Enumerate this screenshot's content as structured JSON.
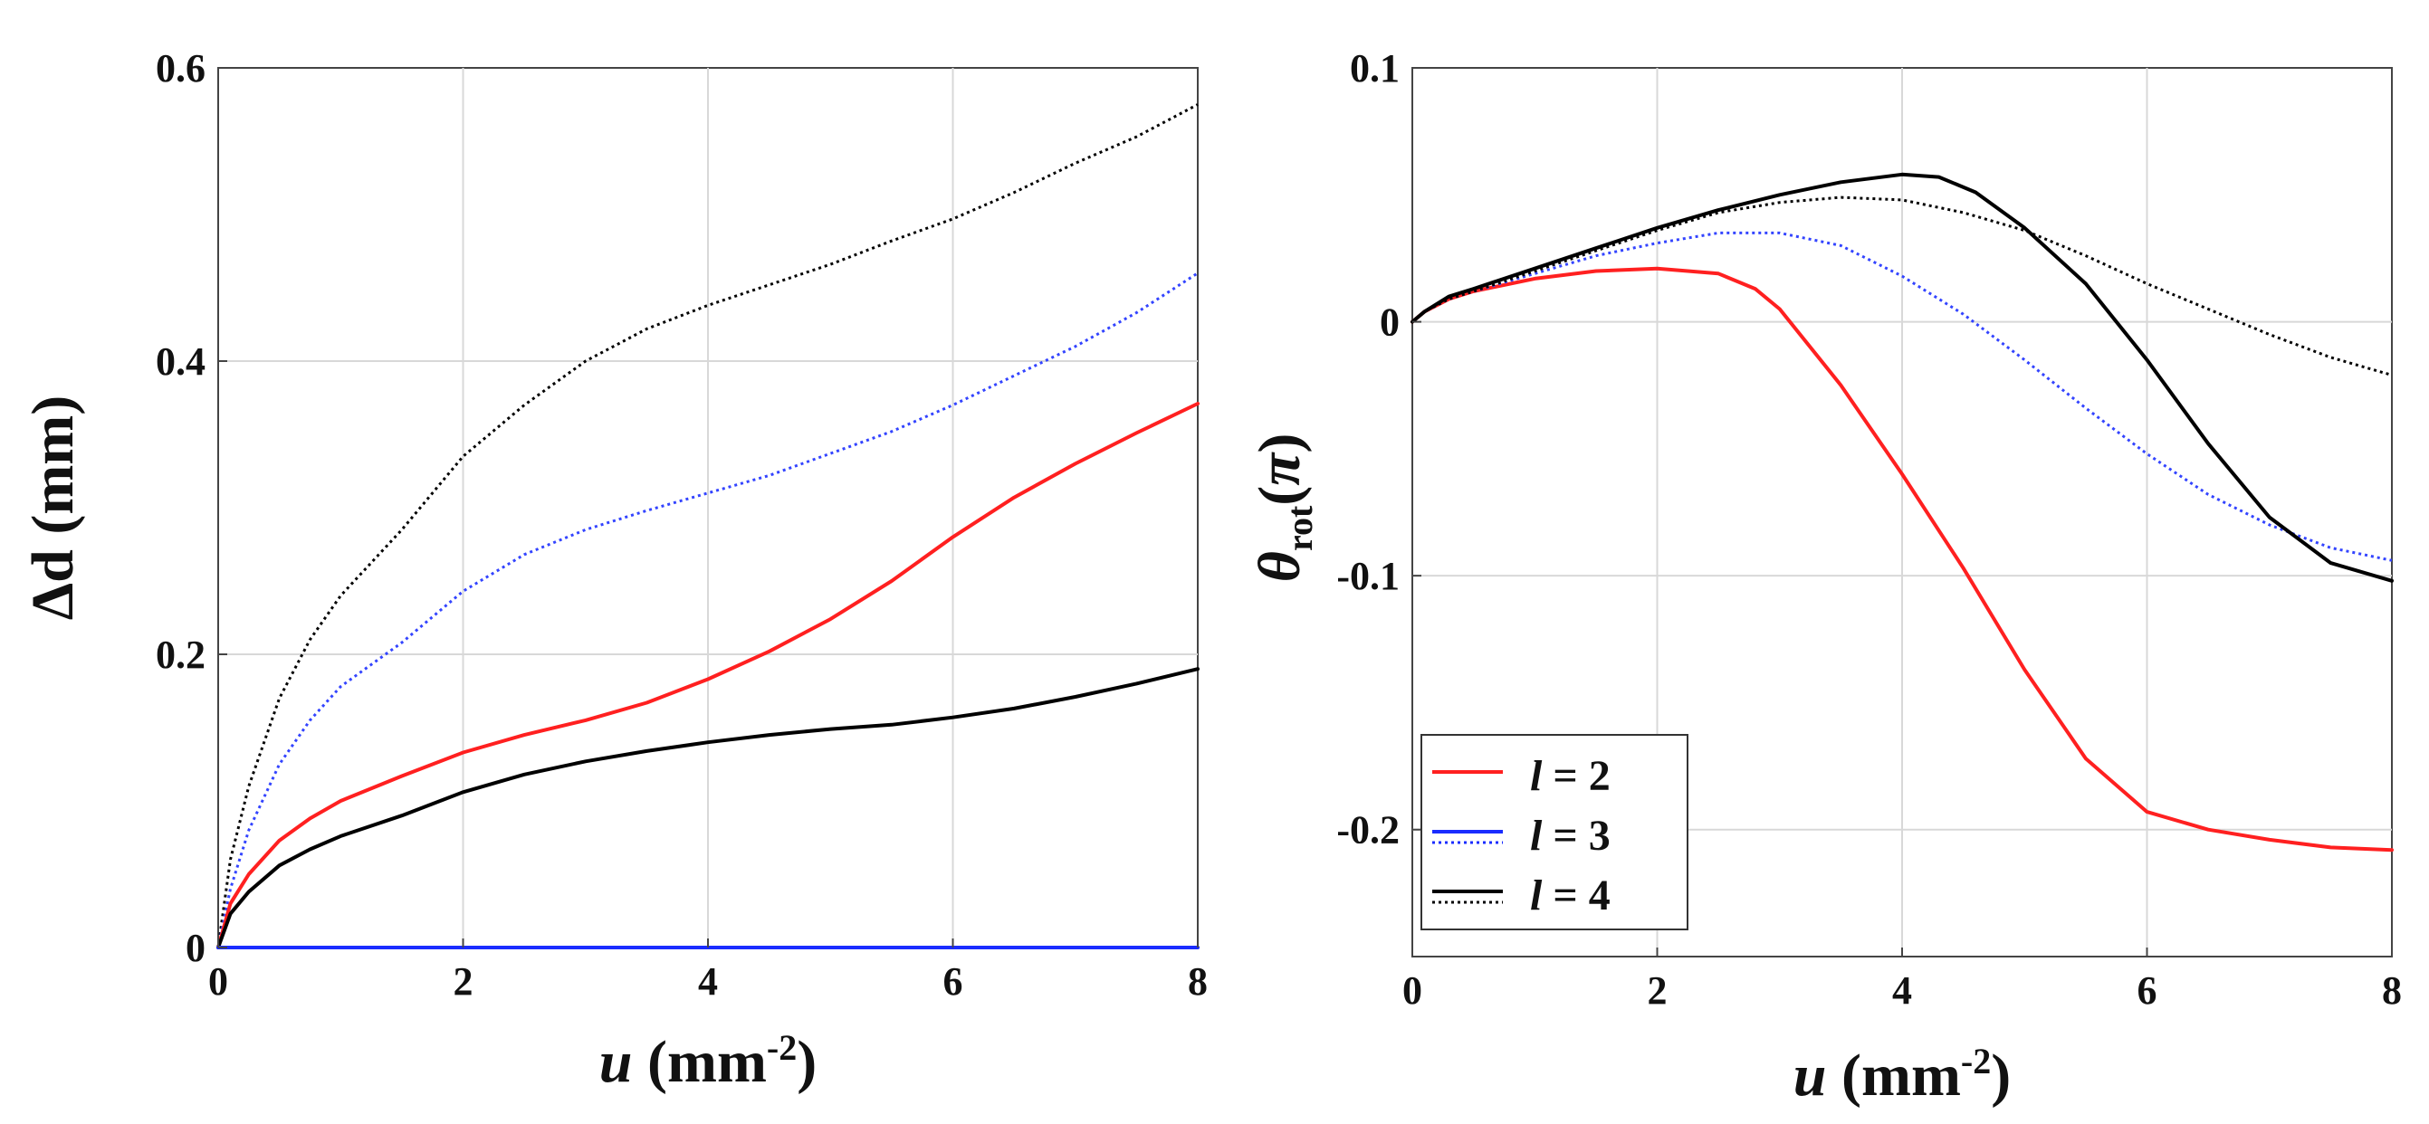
{
  "chart_data": [
    {
      "type": "line",
      "id": "left",
      "xlabel_var": "u",
      "xlabel_unit": " (mm",
      "xlabel_exp": "-2",
      "xlabel_close": ")",
      "ylabel": "Δd (mm)",
      "xlim": [
        0,
        8
      ],
      "ylim": [
        0,
        0.6
      ],
      "xticks": [
        0,
        2,
        4,
        6,
        8
      ],
      "yticks": [
        0,
        0.2,
        0.4,
        0.6
      ],
      "xtick_labels": [
        "0",
        "2",
        "4",
        "6",
        "8"
      ],
      "ytick_labels": [
        "0",
        "0.2",
        "0.4",
        "0.6"
      ],
      "grid": true,
      "series": [
        {
          "name": "l = 4 (dotted)",
          "color": "#000000",
          "dash": "dotted",
          "x": [
            0,
            0.1,
            0.25,
            0.5,
            0.75,
            1,
            1.5,
            2,
            2.5,
            3,
            3.5,
            4,
            4.5,
            5,
            5.5,
            6,
            6.5,
            7,
            7.5,
            8
          ],
          "y": [
            0,
            0.06,
            0.11,
            0.17,
            0.21,
            0.24,
            0.285,
            0.335,
            0.37,
            0.4,
            0.422,
            0.438,
            0.452,
            0.466,
            0.482,
            0.497,
            0.515,
            0.535,
            0.553,
            0.575
          ]
        },
        {
          "name": "l = 3 (dotted)",
          "color": "#3344ff",
          "dash": "dotted",
          "x": [
            0,
            0.1,
            0.25,
            0.5,
            0.75,
            1,
            1.5,
            2,
            2.5,
            3,
            3.5,
            4,
            4.5,
            5,
            5.5,
            6,
            6.5,
            7,
            7.5,
            8
          ],
          "y": [
            0,
            0.04,
            0.08,
            0.125,
            0.155,
            0.178,
            0.208,
            0.243,
            0.268,
            0.285,
            0.298,
            0.31,
            0.322,
            0.337,
            0.352,
            0.37,
            0.39,
            0.41,
            0.433,
            0.46
          ]
        },
        {
          "name": "l = 2",
          "color": "#ff2020",
          "dash": "solid",
          "x": [
            0,
            0.1,
            0.25,
            0.5,
            0.75,
            1,
            1.5,
            2,
            2.5,
            3,
            3.5,
            4,
            4.5,
            5,
            5.5,
            6,
            6.5,
            7,
            7.5,
            8
          ],
          "y": [
            0,
            0.03,
            0.05,
            0.073,
            0.088,
            0.1,
            0.117,
            0.133,
            0.145,
            0.155,
            0.167,
            0.183,
            0.202,
            0.224,
            0.25,
            0.28,
            0.307,
            0.33,
            0.351,
            0.371
          ]
        },
        {
          "name": "l = 4",
          "color": "#000000",
          "dash": "solid",
          "x": [
            0,
            0.1,
            0.25,
            0.5,
            0.75,
            1,
            1.5,
            2,
            2.5,
            3,
            3.5,
            4,
            4.5,
            5,
            5.5,
            6,
            6.5,
            7,
            7.5,
            8
          ],
          "y": [
            0,
            0.023,
            0.038,
            0.056,
            0.067,
            0.076,
            0.09,
            0.106,
            0.118,
            0.127,
            0.134,
            0.14,
            0.145,
            0.149,
            0.152,
            0.157,
            0.163,
            0.171,
            0.18,
            0.19
          ]
        },
        {
          "name": "l = 3",
          "color": "#1a2cff",
          "dash": "solid",
          "x": [
            0,
            8
          ],
          "y": [
            0,
            0
          ]
        }
      ]
    },
    {
      "type": "line",
      "id": "right",
      "xlabel_var": "u",
      "xlabel_unit": " (mm",
      "xlabel_exp": "-2",
      "xlabel_close": ")",
      "ylabel_sym": "θ",
      "ylabel_sub": "rot",
      "ylabel_rest": "(",
      "ylabel_pi": "π",
      "ylabel_end": ")",
      "xlim": [
        0,
        8
      ],
      "ylim": [
        -0.25,
        0.1
      ],
      "xticks": [
        0,
        2,
        4,
        6,
        8
      ],
      "yticks": [
        -0.2,
        -0.1,
        0,
        0.1
      ],
      "xtick_labels": [
        "0",
        "2",
        "4",
        "6",
        "8"
      ],
      "ytick_labels": [
        "-0.2",
        "-0.1",
        "0",
        "0.1"
      ],
      "grid": true,
      "legend_position": "bottom-left",
      "legend": [
        {
          "var": "l",
          "rest": " = 2",
          "color": "#ff2020",
          "solid": true,
          "dotted": false
        },
        {
          "var": "l",
          "rest": " = 3",
          "color": "#1a2cff",
          "solid": true,
          "dotted": true
        },
        {
          "var": "l",
          "rest": " = 4",
          "color": "#000000",
          "solid": true,
          "dotted": true
        }
      ],
      "series": [
        {
          "name": "l = 2",
          "color": "#ff2020",
          "dash": "solid",
          "x": [
            0,
            0.1,
            0.3,
            0.5,
            1,
            1.5,
            2,
            2.5,
            2.8,
            3,
            3.5,
            4,
            4.5,
            5,
            5.5,
            6,
            6.5,
            7,
            7.5,
            8
          ],
          "y": [
            0,
            0.004,
            0.009,
            0.012,
            0.017,
            0.02,
            0.021,
            0.019,
            0.013,
            0.005,
            -0.025,
            -0.06,
            -0.097,
            -0.137,
            -0.172,
            -0.193,
            -0.2,
            -0.204,
            -0.207,
            -0.208
          ]
        },
        {
          "name": "l = 3 (dotted)",
          "color": "#3344ff",
          "dash": "dotted",
          "x": [
            0,
            0.1,
            0.3,
            0.5,
            1,
            1.5,
            2,
            2.5,
            3,
            3.5,
            4,
            4.5,
            5,
            5.5,
            6,
            6.5,
            7,
            7.5,
            8
          ],
          "y": [
            0,
            0.004,
            0.009,
            0.012,
            0.019,
            0.026,
            0.031,
            0.035,
            0.035,
            0.03,
            0.018,
            0.003,
            -0.015,
            -0.034,
            -0.052,
            -0.068,
            -0.08,
            -0.089,
            -0.094
          ]
        },
        {
          "name": "l = 4 (dotted)",
          "color": "#000000",
          "dash": "dotted",
          "x": [
            0,
            0.1,
            0.3,
            0.5,
            1,
            1.5,
            2,
            2.5,
            3,
            3.5,
            4,
            4.5,
            5,
            5.5,
            6,
            6.5,
            7,
            7.5,
            8
          ],
          "y": [
            0,
            0.004,
            0.009,
            0.012,
            0.02,
            0.028,
            0.036,
            0.043,
            0.047,
            0.049,
            0.048,
            0.043,
            0.036,
            0.026,
            0.015,
            0.005,
            -0.005,
            -0.014,
            -0.021
          ]
        },
        {
          "name": "l = 4",
          "color": "#000000",
          "dash": "solid",
          "x": [
            0,
            0.1,
            0.3,
            0.5,
            1,
            1.5,
            2,
            2.5,
            3,
            3.5,
            4,
            4.3,
            4.6,
            5,
            5.5,
            6,
            6.5,
            7,
            7.5,
            8
          ],
          "y": [
            0,
            0.004,
            0.01,
            0.013,
            0.021,
            0.029,
            0.037,
            0.044,
            0.05,
            0.055,
            0.058,
            0.057,
            0.051,
            0.037,
            0.015,
            -0.015,
            -0.048,
            -0.077,
            -0.095,
            -0.102
          ]
        }
      ]
    }
  ]
}
